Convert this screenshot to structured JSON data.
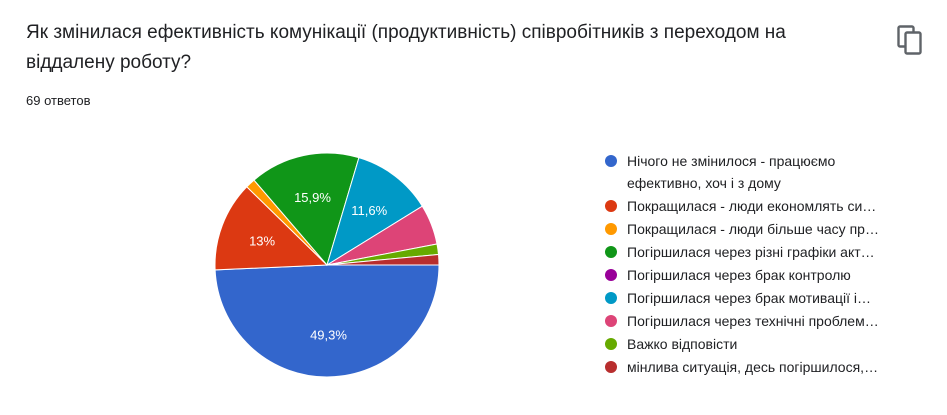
{
  "question": {
    "title": "Як змінилася ефективність комунікації (продуктивність) співробітників з переходом на віддалену роботу?",
    "response_count": "69 ответов",
    "copy_icon": "copy-icon"
  },
  "chart_data": {
    "type": "pie",
    "title": "",
    "slices": [
      {
        "label": "Нічого не змінилося - працюємо ефективно, хоч і з дому",
        "legend": "Нічого не змінилося - працюємо ефективно, хоч і з дому",
        "value": 49.3,
        "display": "49,3%",
        "color": "#3366cc"
      },
      {
        "label": "Покращилася - люди економлять сили",
        "legend": "Покращилася - люди економлять си…",
        "value": 13.0,
        "display": "13%",
        "color": "#dc3912"
      },
      {
        "label": "Покращилася - люди більше часу приділяють",
        "legend": "Покращилася - люди більше часу пр…",
        "value": 1.4,
        "display": "",
        "color": "#ff9900"
      },
      {
        "label": "Погіршилася через різні графіки активності",
        "legend": "Погіршилася через різні графіки акт…",
        "value": 15.9,
        "display": "15,9%",
        "color": "#109618"
      },
      {
        "label": "Погіршилася через брак контролю",
        "legend": "Погіршилася через брак контролю",
        "value": 0,
        "display": "",
        "color": "#990099"
      },
      {
        "label": "Погіршилася через брак мотивації",
        "legend": "Погіршилася через брак мотивації і…",
        "value": 11.6,
        "display": "11,6%",
        "color": "#0099c6"
      },
      {
        "label": "Погіршилася через технічні проблеми",
        "legend": "Погіршилася через технічні проблем…",
        "value": 5.8,
        "display": "",
        "color": "#dd4477"
      },
      {
        "label": "Важко відповісти",
        "legend": "Важко відповісти",
        "value": 1.5,
        "display": "",
        "color": "#66aa00"
      },
      {
        "label": "мінлива ситуація, десь погіршилося",
        "legend": "мінлива ситуація, десь погіршилося,…",
        "value": 1.5,
        "display": "",
        "color": "#b82e2e"
      }
    ]
  }
}
